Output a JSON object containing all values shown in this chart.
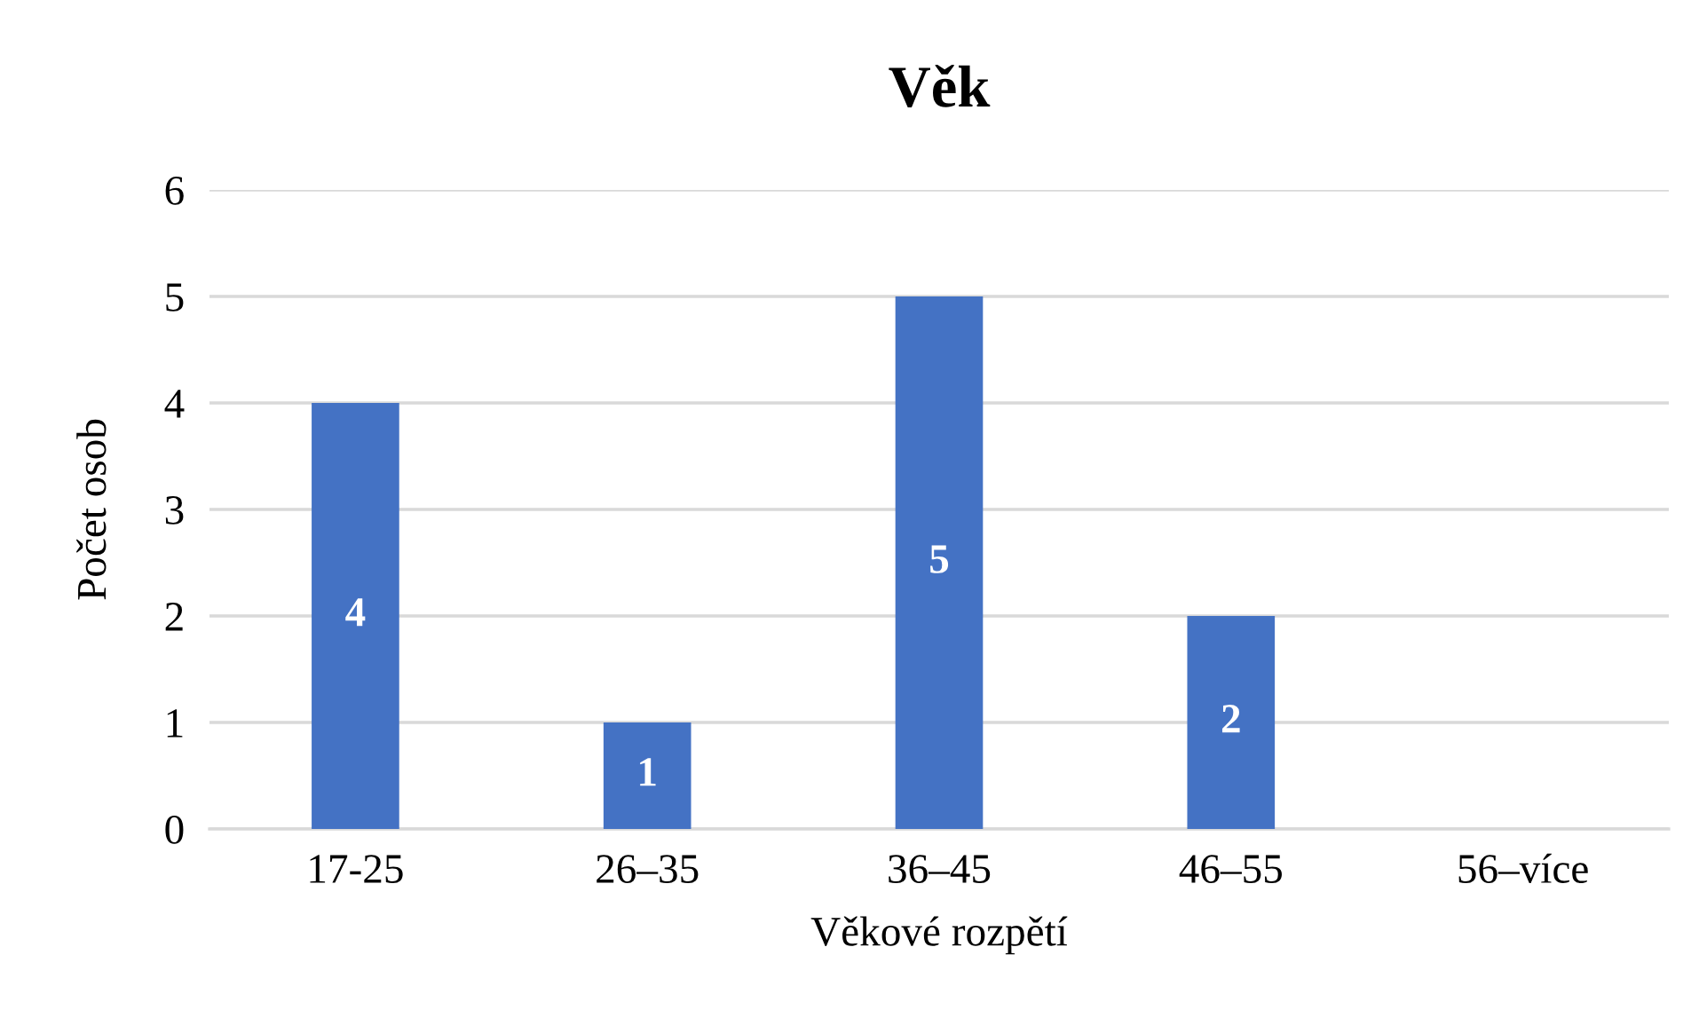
{
  "chart_data": {
    "type": "bar",
    "title": "Věk",
    "xlabel": "Věkové rozpětí",
    "ylabel": "Počet osob",
    "categories": [
      "17-25",
      "26–35",
      "36–45",
      "46–55",
      "56–více"
    ],
    "values": [
      4,
      1,
      5,
      2,
      0
    ],
    "color": "#4472c4",
    "value_labels": [
      "4",
      "1",
      "5",
      "2",
      null
    ],
    "ylim": [
      0,
      6
    ],
    "yticks": [
      0,
      1,
      2,
      3,
      4,
      5,
      6
    ],
    "grid": "y",
    "legend": false
  }
}
